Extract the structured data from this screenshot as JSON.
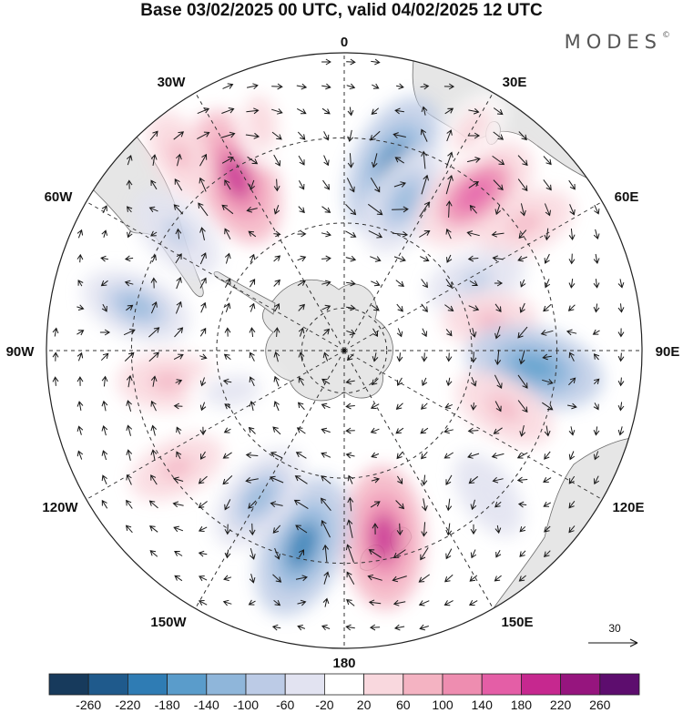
{
  "title": "Base 03/02/2025 00 UTC, valid 04/02/2025 12 UTC",
  "brand": "MODES",
  "brand_mark": "©",
  "longitude_labels": {
    "top": "0",
    "top_left": "30W",
    "top_right": "30E",
    "upper_left": "60W",
    "upper_right": "60E",
    "left": "90W",
    "right": "90E",
    "lower_left": "120W",
    "lower_right": "120E",
    "bottom_left": "150W",
    "bottom_right": "150E",
    "bottom": "180"
  },
  "reference_vector": {
    "label": "30"
  },
  "colorbar": {
    "tick_labels": [
      "-260",
      "-220",
      "-180",
      "-140",
      "-100",
      "-60",
      "-20",
      "20",
      "60",
      "100",
      "140",
      "180",
      "220",
      "260"
    ],
    "colors": [
      "#173a5c",
      "#1f5a8c",
      "#2f7cb4",
      "#5a9ccb",
      "#8fb6da",
      "#bccbe6",
      "#e2e3f1",
      "#ffffff",
      "#f9d8de",
      "#f4b3c2",
      "#ee8db0",
      "#e45ea6",
      "#c6288f",
      "#96157e",
      "#5d0d6e"
    ]
  },
  "map": {
    "colors": {
      "land": "#e6e6e6",
      "coast": "#6d6d6d",
      "grid": "#333333",
      "arrow": "#1a1a1a"
    },
    "anomalies": [
      {
        "lon": 15,
        "lat": -45,
        "value": -200
      },
      {
        "lon": 22,
        "lat": -52,
        "value": -120
      },
      {
        "lon": 40,
        "lat": -42,
        "value": 170
      },
      {
        "lon": 55,
        "lat": -38,
        "value": 80
      },
      {
        "lon": 62,
        "lat": -55,
        "value": -80
      },
      {
        "lon": 78,
        "lat": -55,
        "value": 60
      },
      {
        "lon": 95,
        "lat": -45,
        "value": -180
      },
      {
        "lon": 110,
        "lat": -50,
        "value": 90
      },
      {
        "lon": 135,
        "lat": -42,
        "value": -60
      },
      {
        "lon": 168,
        "lat": -45,
        "value": 190
      },
      {
        "lon": -168,
        "lat": -43,
        "value": -200
      },
      {
        "lon": -150,
        "lat": -50,
        "value": -120
      },
      {
        "lon": -125,
        "lat": -42,
        "value": 70
      },
      {
        "lon": -100,
        "lat": -48,
        "value": 80
      },
      {
        "lon": -78,
        "lat": -40,
        "value": -110
      },
      {
        "lon": -55,
        "lat": -42,
        "value": -90
      },
      {
        "lon": -32,
        "lat": -42,
        "value": 180
      },
      {
        "lon": -40,
        "lat": -30,
        "value": 60
      },
      {
        "lon": 30,
        "lat": -30,
        "value": 40
      },
      {
        "lon": -20,
        "lat": -33,
        "value": 50
      },
      {
        "lon": -110,
        "lat": -62,
        "value": -50
      }
    ]
  }
}
